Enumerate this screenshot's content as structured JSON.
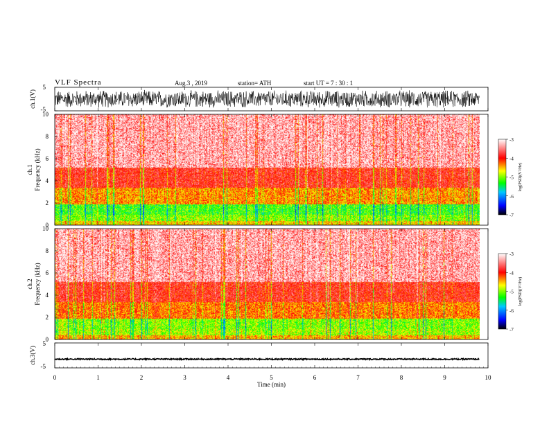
{
  "header": {
    "title": "VLF  Spectra",
    "date": "Aug.3  , 2019",
    "station": "station= ATH",
    "start": "start  UT  =    7  : 30 : 1"
  },
  "chart_data": [
    {
      "type": "line",
      "name": "ch1-waveform",
      "ylabel": "ch.1(V)",
      "yticks": [
        "5",
        "-5"
      ],
      "ylim": [
        -5,
        5
      ],
      "xlim": [
        0,
        10
      ],
      "note_visible": "dense waveform, amplitude roughly -4 to 4 V across 0 to 9.8 min"
    },
    {
      "type": "heatmap",
      "name": "ch1-spectrogram",
      "ylabel_top": "ch.1",
      "ylabel": "Frequency  (kHz)",
      "yticks": [
        "0",
        "2",
        "4",
        "6",
        "8",
        "10"
      ],
      "ylim": [
        0,
        10
      ],
      "xlim": [
        0,
        10
      ],
      "data_extent_min": 9.8,
      "colorbar": {
        "label": "log(PSD)(V²/Hz)",
        "ticks": [
          "-3",
          "-4",
          "-5",
          "-6",
          "-7"
        ],
        "range": [
          -7,
          -3
        ],
        "colors": [
          "#000000",
          "#0000ff",
          "#00c8ff",
          "#00ff00",
          "#ffff00",
          "#ff0000",
          "#ffffff"
        ]
      },
      "bands_khz": [
        {
          "from": 0.0,
          "to": 0.4,
          "level": -4.6
        },
        {
          "from": 0.4,
          "to": 1.0,
          "level": -5.0
        },
        {
          "from": 1.0,
          "to": 1.9,
          "level": -5.2
        },
        {
          "from": 1.9,
          "to": 3.4,
          "level": -4.4
        },
        {
          "from": 3.4,
          "to": 5.2,
          "level": -3.9
        },
        {
          "from": 5.2,
          "to": 10.0,
          "level": -3.5
        }
      ]
    },
    {
      "type": "heatmap",
      "name": "ch2-spectrogram",
      "ylabel_top": "ch.2",
      "ylabel": "Frequency  (kHz)",
      "yticks": [
        "0",
        "2",
        "4",
        "6",
        "8",
        "10"
      ],
      "ylim": [
        0,
        10
      ],
      "xlim": [
        0,
        10
      ],
      "data_extent_min": 9.8,
      "colorbar": {
        "label": "log(PSD)(V²/Hz)",
        "ticks": [
          "-3",
          "-4",
          "-5",
          "-6",
          "-7"
        ],
        "range": [
          -7,
          -3
        ],
        "colors": [
          "#000000",
          "#0000ff",
          "#00c8ff",
          "#00ff00",
          "#ffff00",
          "#ff0000",
          "#ffffff"
        ]
      },
      "bands_khz": [
        {
          "from": 0.0,
          "to": 0.4,
          "level": -4.5
        },
        {
          "from": 0.4,
          "to": 1.0,
          "level": -4.9
        },
        {
          "from": 1.0,
          "to": 1.9,
          "level": -5.0
        },
        {
          "from": 1.9,
          "to": 3.4,
          "level": -4.3
        },
        {
          "from": 3.4,
          "to": 5.2,
          "level": -3.9
        },
        {
          "from": 5.2,
          "to": 10.0,
          "level": -3.5
        }
      ]
    },
    {
      "type": "line",
      "name": "ch3-waveform",
      "ylabel": "ch.3(V)",
      "yticks": [
        "5",
        "-5"
      ],
      "ylim": [
        -5,
        5
      ],
      "xlim": [
        0,
        10
      ],
      "note_visible": "near-constant trace at about -1.5 V from 0 to 9.8 min",
      "level": -1.5
    }
  ],
  "xaxis": {
    "label": "Time  (min)",
    "ticks": [
      "0",
      "1",
      "2",
      "3",
      "4",
      "5",
      "6",
      "7",
      "8",
      "9",
      "10"
    ]
  }
}
